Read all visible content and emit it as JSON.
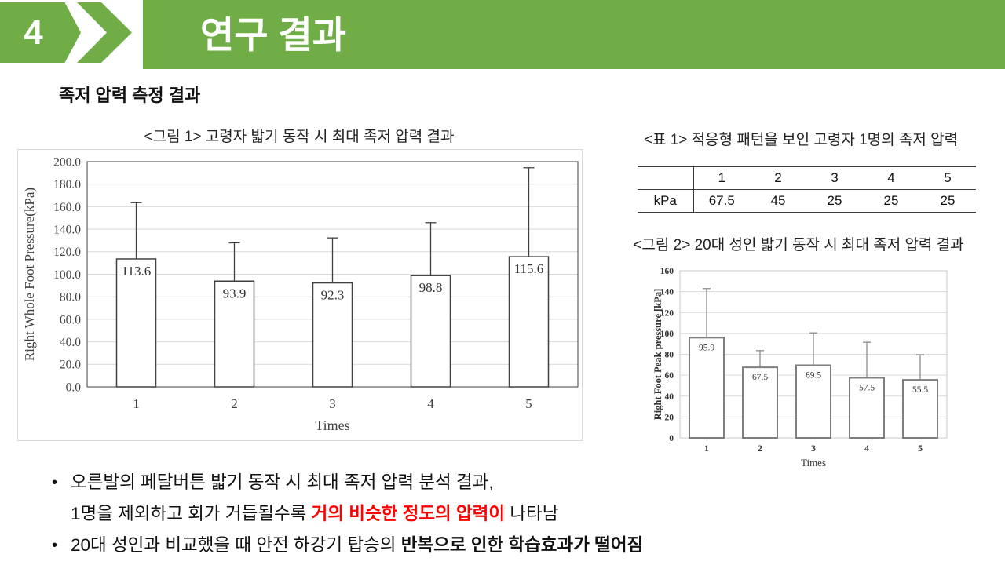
{
  "slide": {
    "page_number": "4",
    "title": "연구 결과",
    "subtitle": "족저 압력 측정 결과",
    "accent_color": "#70ad47",
    "highlight_color": "#ff0000",
    "background_color": "#ffffff"
  },
  "table1": {
    "caption": "<표 1> 적응형 패턴을 보인 고령자 1명의 족저 압력",
    "columns": [
      "",
      "1",
      "2",
      "3",
      "4",
      "5"
    ],
    "rows": [
      [
        "kPa",
        "67.5",
        "45",
        "25",
        "25",
        "25"
      ]
    ]
  },
  "bullets": [
    {
      "segments": [
        {
          "text": "오른발의 페달버튼 밟기 동작 시 최대 족저 압력 분석 결과,"
        },
        {
          "text": "1명을 제외하고 회가 거듭될수록 ",
          "break": true
        },
        {
          "text": "거의 비슷한 정도의 압력이",
          "style": "red-bold"
        },
        {
          "text": " 나타남"
        }
      ]
    },
    {
      "segments": [
        {
          "text": "20대 성인과 비교했을 때 안전 하강기 탑승의 "
        },
        {
          "text": "반복으로 인한 학습효과가 떨어짐",
          "style": "bold"
        }
      ]
    }
  ],
  "chart_data": [
    {
      "type": "bar",
      "title": "<그림 1> 고령자 밟기 동작 시 최대 족저 압력 결과",
      "categories": [
        "1",
        "2",
        "3",
        "4",
        "5"
      ],
      "values": [
        113.6,
        93.9,
        92.3,
        98.8,
        115.6
      ],
      "value_labels": [
        "113.6",
        "93.9",
        "92.3",
        "98.8",
        "115.6"
      ],
      "error_plus": [
        50,
        34,
        40,
        47,
        79
      ],
      "xlabel": "Times",
      "ylabel": "Right Whole Foot Pressure(kPa)",
      "ylim": [
        0,
        200
      ],
      "ytick_step": 20,
      "ytick_decimals": 1,
      "grid": true,
      "legend": false,
      "bar_fill": "#ffffff"
    },
    {
      "type": "bar",
      "title": "<그림 2> 20대 성인 밟기 동작 시 최대 족저 압력 결과",
      "categories": [
        "1",
        "2",
        "3",
        "4",
        "5"
      ],
      "values": [
        95.9,
        67.5,
        69.5,
        57.5,
        55.5
      ],
      "value_labels": [
        "95.9",
        "67.5",
        "69.5",
        "57.5",
        "55.5"
      ],
      "error_plus": [
        47,
        16,
        31,
        34,
        24
      ],
      "xlabel": "Times",
      "ylabel": "Right Foot Peak pressure [kPa]",
      "ylim": [
        0,
        160
      ],
      "ytick_step": 20,
      "ytick_decimals": 0,
      "grid": true,
      "legend": false,
      "bar_fill": "#ffffff"
    }
  ]
}
